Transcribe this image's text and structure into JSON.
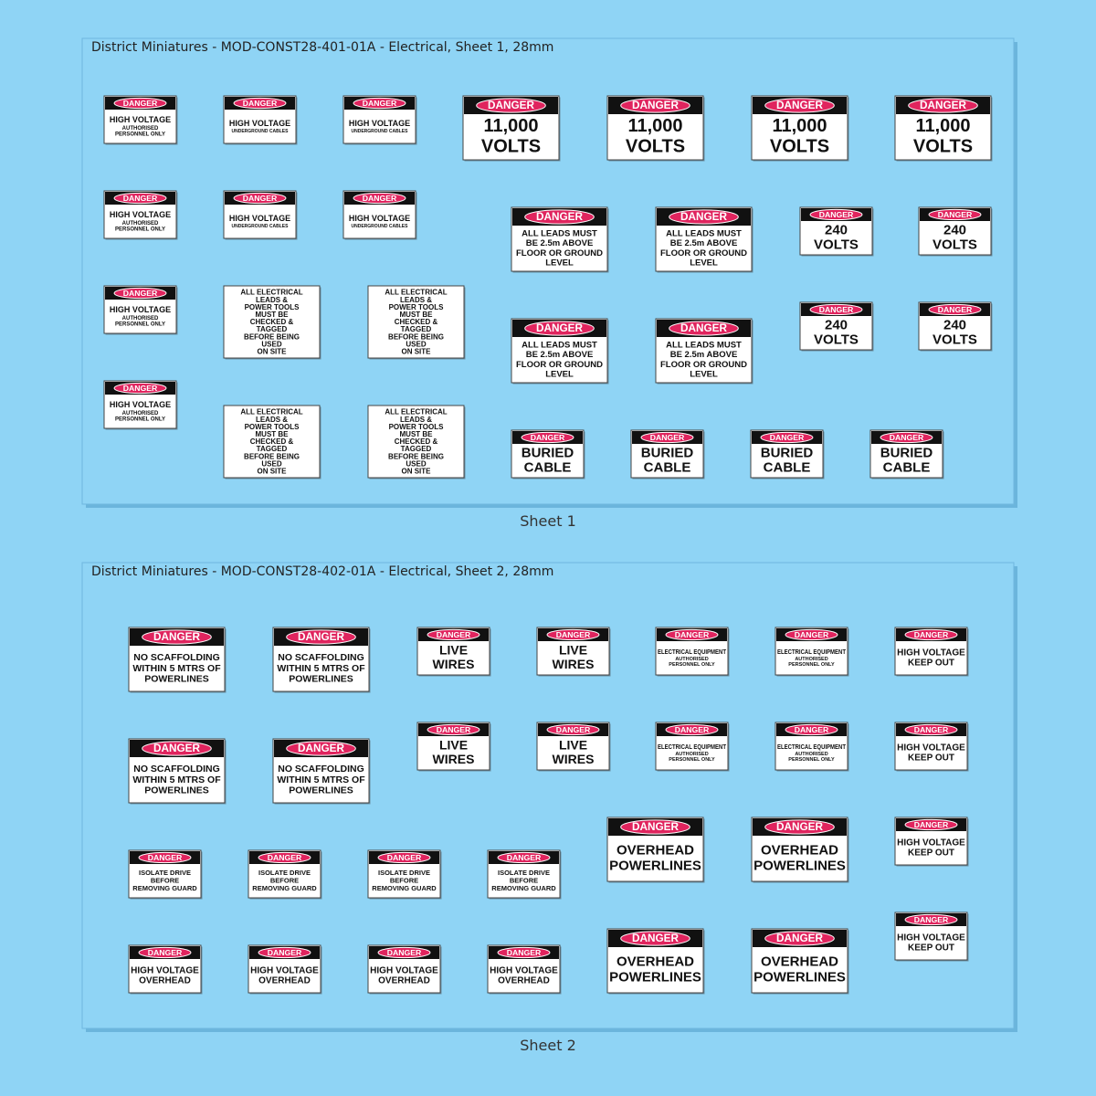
{
  "sheets": [
    {
      "title": "District Miniatures - MOD-CONST28-401-01A - Electrical, Sheet 1, 28mm",
      "caption": "Sheet 1",
      "signs": [
        {
          "header": "DANGER",
          "lines": [
            "HIGH VOLTAGE",
            "AUTHORISED",
            "PERSONNEL ONLY"
          ]
        },
        {
          "header": "DANGER",
          "lines": [
            "HIGH VOLTAGE",
            "UNDERGROUND CABLES"
          ]
        },
        {
          "header": "DANGER",
          "lines": [
            "HIGH VOLTAGE",
            "UNDERGROUND CABLES"
          ]
        },
        {
          "header": "DANGER",
          "lines": [
            "11,000",
            "VOLTS"
          ]
        },
        {
          "header": "DANGER",
          "lines": [
            "11,000",
            "VOLTS"
          ]
        },
        {
          "header": "DANGER",
          "lines": [
            "11,000",
            "VOLTS"
          ]
        },
        {
          "header": "DANGER",
          "lines": [
            "11,000",
            "VOLTS"
          ]
        },
        {
          "header": "DANGER",
          "lines": [
            "HIGH VOLTAGE",
            "AUTHORISED",
            "PERSONNEL ONLY"
          ]
        },
        {
          "header": "DANGER",
          "lines": [
            "HIGH VOLTAGE",
            "UNDERGROUND CABLES"
          ]
        },
        {
          "header": "DANGER",
          "lines": [
            "HIGH VOLTAGE",
            "UNDERGROUND CABLES"
          ]
        },
        {
          "header": "DANGER",
          "lines": [
            "ALL LEADS MUST",
            "BE 2.5m ABOVE",
            "FLOOR OR GROUND",
            "LEVEL"
          ]
        },
        {
          "header": "DANGER",
          "lines": [
            "ALL LEADS MUST",
            "BE 2.5m ABOVE",
            "FLOOR OR GROUND",
            "LEVEL"
          ]
        },
        {
          "header": "DANGER",
          "lines": [
            "240",
            "VOLTS"
          ]
        },
        {
          "header": "DANGER",
          "lines": [
            "240",
            "VOLTS"
          ]
        },
        {
          "header": "DANGER",
          "lines": [
            "HIGH VOLTAGE",
            "AUTHORISED",
            "PERSONNEL ONLY"
          ]
        },
        {
          "lines": [
            "ALL ELECTRICAL",
            "LEADS &",
            "POWER TOOLS",
            "MUST BE",
            "CHECKED &",
            "TAGGED",
            "BEFORE BEING",
            "USED",
            "ON SITE"
          ]
        },
        {
          "lines": [
            "ALL ELECTRICAL",
            "LEADS &",
            "POWER TOOLS",
            "MUST BE",
            "CHECKED &",
            "TAGGED",
            "BEFORE BEING",
            "USED",
            "ON SITE"
          ]
        },
        {
          "header": "DANGER",
          "lines": [
            "ALL LEADS MUST",
            "BE 2.5m ABOVE",
            "FLOOR OR GROUND",
            "LEVEL"
          ]
        },
        {
          "header": "DANGER",
          "lines": [
            "ALL LEADS MUST",
            "BE 2.5m ABOVE",
            "FLOOR OR GROUND",
            "LEVEL"
          ]
        },
        {
          "header": "DANGER",
          "lines": [
            "240",
            "VOLTS"
          ]
        },
        {
          "header": "DANGER",
          "lines": [
            "240",
            "VOLTS"
          ]
        },
        {
          "header": "DANGER",
          "lines": [
            "HIGH VOLTAGE",
            "AUTHORISED",
            "PERSONNEL ONLY"
          ]
        },
        {
          "lines": [
            "ALL ELECTRICAL",
            "LEADS &",
            "POWER TOOLS",
            "MUST BE",
            "CHECKED &",
            "TAGGED",
            "BEFORE BEING",
            "USED",
            "ON SITE"
          ]
        },
        {
          "lines": [
            "ALL ELECTRICAL",
            "LEADS &",
            "POWER TOOLS",
            "MUST BE",
            "CHECKED &",
            "TAGGED",
            "BEFORE BEING",
            "USED",
            "ON SITE"
          ]
        },
        {
          "header": "DANGER",
          "lines": [
            "BURIED",
            "CABLE"
          ]
        },
        {
          "header": "DANGER",
          "lines": [
            "BURIED",
            "CABLE"
          ]
        },
        {
          "header": "DANGER",
          "lines": [
            "BURIED",
            "CABLE"
          ]
        },
        {
          "header": "DANGER",
          "lines": [
            "BURIED",
            "CABLE"
          ]
        }
      ]
    },
    {
      "title": "District Miniatures - MOD-CONST28-402-01A - Electrical, Sheet 2, 28mm",
      "caption": "Sheet 2",
      "signs": [
        {
          "header": "DANGER",
          "lines": [
            "NO SCAFFOLDING",
            "WITHIN 5 MTRS OF",
            "POWERLINES"
          ]
        },
        {
          "header": "DANGER",
          "lines": [
            "NO SCAFFOLDING",
            "WITHIN 5 MTRS OF",
            "POWERLINES"
          ]
        },
        {
          "header": "DANGER",
          "lines": [
            "LIVE",
            "WIRES"
          ]
        },
        {
          "header": "DANGER",
          "lines": [
            "LIVE",
            "WIRES"
          ]
        },
        {
          "header": "DANGER",
          "lines": [
            "ELECTRICAL EQUIPMENT",
            "AUTHORISED",
            "PERSONNEL ONLY"
          ]
        },
        {
          "header": "DANGER",
          "lines": [
            "ELECTRICAL EQUIPMENT",
            "AUTHORISED",
            "PERSONNEL ONLY"
          ]
        },
        {
          "header": "DANGER",
          "lines": [
            "HIGH VOLTAGE",
            "KEEP OUT"
          ]
        },
        {
          "header": "DANGER",
          "lines": [
            "NO SCAFFOLDING",
            "WITHIN 5 MTRS OF",
            "POWERLINES"
          ]
        },
        {
          "header": "DANGER",
          "lines": [
            "NO SCAFFOLDING",
            "WITHIN 5 MTRS OF",
            "POWERLINES"
          ]
        },
        {
          "header": "DANGER",
          "lines": [
            "LIVE",
            "WIRES"
          ]
        },
        {
          "header": "DANGER",
          "lines": [
            "LIVE",
            "WIRES"
          ]
        },
        {
          "header": "DANGER",
          "lines": [
            "ELECTRICAL EQUIPMENT",
            "AUTHORISED",
            "PERSONNEL ONLY"
          ]
        },
        {
          "header": "DANGER",
          "lines": [
            "ELECTRICAL EQUIPMENT",
            "AUTHORISED",
            "PERSONNEL ONLY"
          ]
        },
        {
          "header": "DANGER",
          "lines": [
            "HIGH VOLTAGE",
            "KEEP OUT"
          ]
        },
        {
          "header": "DANGER",
          "lines": [
            "ISOLATE DRIVE",
            "BEFORE",
            "REMOVING GUARD"
          ]
        },
        {
          "header": "DANGER",
          "lines": [
            "ISOLATE DRIVE",
            "BEFORE",
            "REMOVING GUARD"
          ]
        },
        {
          "header": "DANGER",
          "lines": [
            "ISOLATE DRIVE",
            "BEFORE",
            "REMOVING GUARD"
          ]
        },
        {
          "header": "DANGER",
          "lines": [
            "ISOLATE DRIVE",
            "BEFORE",
            "REMOVING GUARD"
          ]
        },
        {
          "header": "DANGER",
          "lines": [
            "OVERHEAD",
            "POWERLINES"
          ]
        },
        {
          "header": "DANGER",
          "lines": [
            "OVERHEAD",
            "POWERLINES"
          ]
        },
        {
          "header": "DANGER",
          "lines": [
            "HIGH VOLTAGE",
            "KEEP OUT"
          ]
        },
        {
          "header": "DANGER",
          "lines": [
            "HIGH VOLTAGE",
            "OVERHEAD"
          ]
        },
        {
          "header": "DANGER",
          "lines": [
            "HIGH VOLTAGE",
            "OVERHEAD"
          ]
        },
        {
          "header": "DANGER",
          "lines": [
            "HIGH VOLTAGE",
            "OVERHEAD"
          ]
        },
        {
          "header": "DANGER",
          "lines": [
            "HIGH VOLTAGE",
            "OVERHEAD"
          ]
        },
        {
          "header": "DANGER",
          "lines": [
            "OVERHEAD",
            "POWERLINES"
          ]
        },
        {
          "header": "DANGER",
          "lines": [
            "OVERHEAD",
            "POWERLINES"
          ]
        },
        {
          "header": "DANGER",
          "lines": [
            "HIGH VOLTAGE",
            "KEEP OUT"
          ]
        }
      ]
    }
  ]
}
